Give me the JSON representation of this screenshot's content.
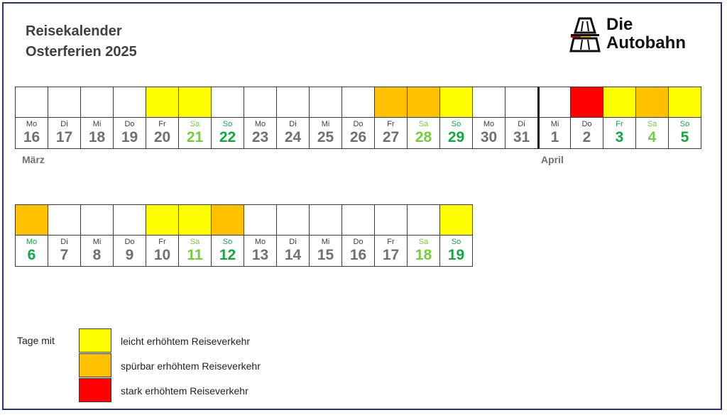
{
  "title": {
    "line1": "Reisekalender",
    "line2": "Osterferien 2025"
  },
  "logo": {
    "line1": "Die",
    "line2": "Autobahn"
  },
  "colors": {
    "none": "#ffffff",
    "light": "#ffff00",
    "medium": "#ffc000",
    "heavy": "#ff0000"
  },
  "row1": [
    {
      "wd": "Mo",
      "d": "16",
      "level": "none",
      "kind": "weekday"
    },
    {
      "wd": "Di",
      "d": "17",
      "level": "none",
      "kind": "weekday"
    },
    {
      "wd": "Mi",
      "d": "18",
      "level": "none",
      "kind": "weekday"
    },
    {
      "wd": "Do",
      "d": "19",
      "level": "none",
      "kind": "weekday"
    },
    {
      "wd": "Fr",
      "d": "20",
      "level": "light",
      "kind": "weekday"
    },
    {
      "wd": "Sa",
      "d": "21",
      "level": "light",
      "kind": "sat"
    },
    {
      "wd": "So",
      "d": "22",
      "level": "none",
      "kind": "sun"
    },
    {
      "wd": "Mo",
      "d": "23",
      "level": "none",
      "kind": "weekday"
    },
    {
      "wd": "Di",
      "d": "24",
      "level": "none",
      "kind": "weekday"
    },
    {
      "wd": "Mi",
      "d": "25",
      "level": "none",
      "kind": "weekday"
    },
    {
      "wd": "Do",
      "d": "26",
      "level": "none",
      "kind": "weekday"
    },
    {
      "wd": "Fr",
      "d": "27",
      "level": "medium",
      "kind": "weekday"
    },
    {
      "wd": "Sa",
      "d": "28",
      "level": "medium",
      "kind": "sat"
    },
    {
      "wd": "So",
      "d": "29",
      "level": "light",
      "kind": "sun"
    },
    {
      "wd": "Mo",
      "d": "30",
      "level": "none",
      "kind": "weekday"
    },
    {
      "wd": "Di",
      "d": "31",
      "level": "none",
      "kind": "weekday"
    },
    {
      "wd": "Mi",
      "d": "1",
      "level": "none",
      "kind": "weekday",
      "sep": true
    },
    {
      "wd": "Do",
      "d": "2",
      "level": "heavy",
      "kind": "weekday"
    },
    {
      "wd": "Fr",
      "d": "3",
      "level": "light",
      "kind": "holiday"
    },
    {
      "wd": "Sa",
      "d": "4",
      "level": "medium",
      "kind": "sat"
    },
    {
      "wd": "So",
      "d": "5",
      "level": "light",
      "kind": "sun"
    }
  ],
  "row2": [
    {
      "wd": "Mo",
      "d": "6",
      "level": "medium",
      "kind": "holiday"
    },
    {
      "wd": "Di",
      "d": "7",
      "level": "none",
      "kind": "weekday"
    },
    {
      "wd": "Mi",
      "d": "8",
      "level": "none",
      "kind": "weekday"
    },
    {
      "wd": "Do",
      "d": "9",
      "level": "none",
      "kind": "weekday"
    },
    {
      "wd": "Fr",
      "d": "10",
      "level": "light",
      "kind": "weekday"
    },
    {
      "wd": "Sa",
      "d": "11",
      "level": "light",
      "kind": "sat"
    },
    {
      "wd": "So",
      "d": "12",
      "level": "medium",
      "kind": "sun"
    },
    {
      "wd": "Mo",
      "d": "13",
      "level": "none",
      "kind": "weekday"
    },
    {
      "wd": "Di",
      "d": "14",
      "level": "none",
      "kind": "weekday"
    },
    {
      "wd": "Mi",
      "d": "15",
      "level": "none",
      "kind": "weekday"
    },
    {
      "wd": "Do",
      "d": "16",
      "level": "none",
      "kind": "weekday"
    },
    {
      "wd": "Fr",
      "d": "17",
      "level": "none",
      "kind": "weekday"
    },
    {
      "wd": "Sa",
      "d": "18",
      "level": "none",
      "kind": "sat"
    },
    {
      "wd": "So",
      "d": "19",
      "level": "light",
      "kind": "sun"
    }
  ],
  "months": {
    "march": "März",
    "april": "April"
  },
  "legend": {
    "title": "Tage mit",
    "items": [
      {
        "label": "leicht erhöhtem Reiseverkehr",
        "level": "light"
      },
      {
        "label": "spürbar erhöhtem Reiseverkehr",
        "level": "medium"
      },
      {
        "label": "stark erhöhtem Reiseverkehr",
        "level": "heavy"
      }
    ]
  }
}
